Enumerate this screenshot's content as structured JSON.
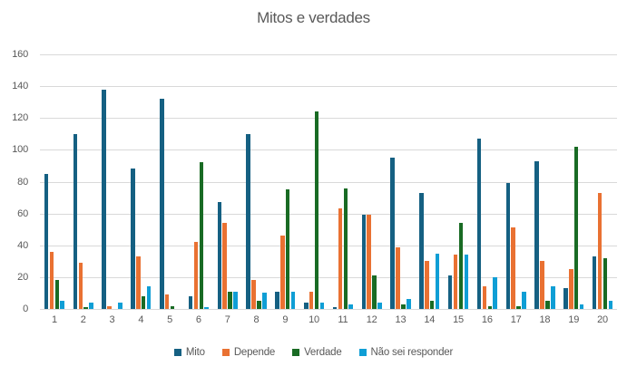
{
  "title": "Mitos e verdades",
  "chart_data": {
    "type": "bar",
    "title": "Mitos e verdades",
    "categories": [
      "1",
      "2",
      "3",
      "4",
      "5",
      "6",
      "7",
      "8",
      "9",
      "10",
      "11",
      "12",
      "13",
      "14",
      "15",
      "16",
      "17",
      "18",
      "19",
      "20"
    ],
    "series": [
      {
        "name": "Mito",
        "color": "#156082",
        "values": [
          85,
          110,
          138,
          88,
          132,
          8,
          67,
          110,
          11,
          4,
          1,
          59,
          95,
          73,
          21,
          107,
          79,
          93,
          13,
          33
        ]
      },
      {
        "name": "Depende",
        "color": "#E97132",
        "values": [
          36,
          29,
          2,
          33,
          9,
          42,
          54,
          18,
          46,
          11,
          63,
          59,
          39,
          30,
          34,
          14,
          51,
          30,
          25,
          73
        ]
      },
      {
        "name": "Verdade",
        "color": "#196B24",
        "values": [
          18,
          1,
          0,
          8,
          2,
          92,
          11,
          5,
          75,
          124,
          76,
          21,
          3,
          5,
          54,
          2,
          2,
          5,
          102,
          32
        ]
      },
      {
        "name": "Não sei responder",
        "color": "#0F9ED5",
        "values": [
          5,
          4,
          4,
          14,
          0,
          1,
          11,
          10,
          11,
          4,
          3,
          4,
          6,
          35,
          34,
          20,
          11,
          14,
          3,
          5
        ]
      }
    ],
    "ylim": [
      0,
      160
    ],
    "ytick_step": 20,
    "ytick_labels": [
      "0",
      "20",
      "40",
      "60",
      "80",
      "100",
      "120",
      "140",
      "160"
    ],
    "grid": true,
    "legend_position": "bottom",
    "axis_text_color": "#595959",
    "title_color": "#595959",
    "gridline_color": "#D9D9D9",
    "background_color": "#FFFFFF"
  }
}
